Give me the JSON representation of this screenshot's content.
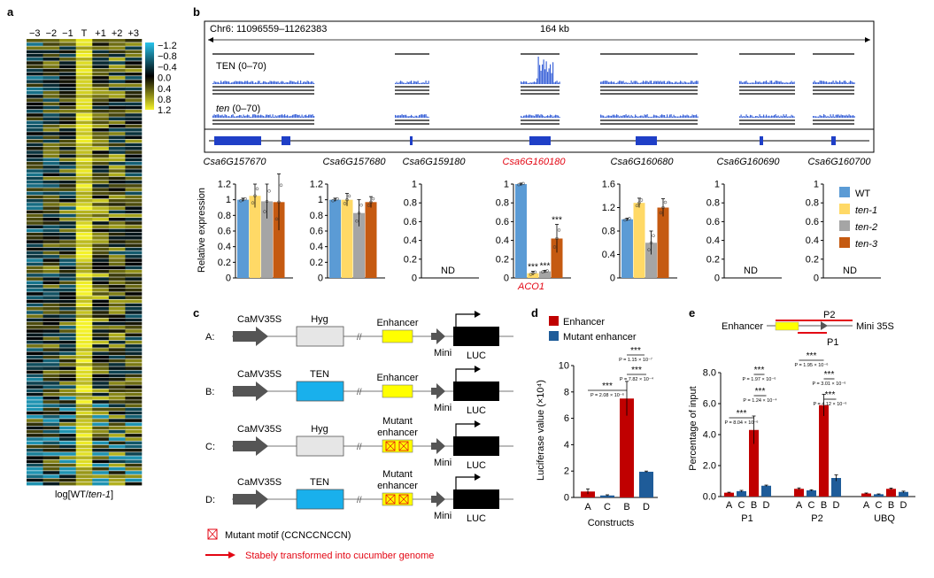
{
  "panel_labels": {
    "a": "a",
    "b": "b",
    "c": "c",
    "d": "d",
    "e": "e"
  },
  "panel_a": {
    "columns": [
      "−3",
      "−2",
      "−1",
      "T",
      "+1",
      "+2",
      "+3"
    ],
    "colorbar_ticks": [
      "−1.2",
      "−0.8",
      "−0.4",
      "0.0",
      "0.4",
      "0.8",
      "1.2"
    ],
    "xlabel_pre": "log[WT/",
    "xlabel_it": "ten-1",
    "xlabel_post": "]",
    "colors": {
      "neg": "#29c4ec",
      "zero": "#000000",
      "pos": "#f4f22a"
    }
  },
  "panel_b": {
    "region": "Chr6: 11096559–11262383",
    "scale": "164 kb",
    "track_top_prefix": "TEN",
    "track_top_range": " (0–70)",
    "track_bottom_prefix": "ten",
    "track_bottom_range": " (0–70)",
    "genes": [
      "Csa6G157670",
      "Csa6G157680",
      "Csa6G159180",
      "Csa6G160180",
      "Csa6G160680",
      "Csa6G160690",
      "Csa6G160700"
    ],
    "highlight_gene": "Csa6G160180",
    "highlight_alias": "ACO1",
    "nd_label": "ND",
    "ylabel": "Relative expression",
    "legend": [
      {
        "name": "WT",
        "color": "#5b9bd5",
        "italic": false
      },
      {
        "name": "ten-1",
        "color": "#ffd966",
        "italic": true
      },
      {
        "name": "ten-2",
        "color": "#a5a5a5",
        "italic": true
      },
      {
        "name": "ten-3",
        "color": "#c55a11",
        "italic": true
      }
    ],
    "sig_label": "***"
  },
  "panel_c": {
    "rows": [
      {
        "letter": "A:",
        "promoter": "CaMV35S",
        "box1": "Hyg",
        "box1_color": "#e6e6e6",
        "box2": "Enhancer",
        "mutant": false
      },
      {
        "letter": "B:",
        "promoter": "CaMV35S",
        "box1": "TEN",
        "box1_color": "#19b0ec",
        "box2": "Enhancer",
        "mutant": false
      },
      {
        "letter": "C:",
        "promoter": "CaMV35S",
        "box1": "Hyg",
        "box1_color": "#e6e6e6",
        "box2": "Mutant enhancer",
        "mutant": true
      },
      {
        "letter": "D:",
        "promoter": "CaMV35S",
        "box1": "TEN",
        "box1_color": "#19b0ec",
        "box2": "Mutant enhancer",
        "mutant": true
      }
    ],
    "mini": "Mini",
    "luc": "LUC",
    "mutant_label_1": "Mutant",
    "mutant_label_2": "enhancer",
    "legend_motif": "Mutant motif (CCNCCNCCN)",
    "legend_arrow": "Stabely transformed into cucumber genome"
  },
  "panel_d": {
    "legend_enh": "Enhancer",
    "legend_mut": "Mutant enhancer",
    "ylabel": "Luciferase value (×10⁴)",
    "xlabel": "Constructs",
    "sig": [
      "***",
      "***",
      "***"
    ],
    "pvals": [
      "P = 2.08 × 10⁻⁶",
      "P = 1.15 × 10⁻⁷",
      "P = 7.82 × 10⁻⁴"
    ]
  },
  "panel_e": {
    "schematic_enhancer": "Enhancer",
    "schematic_p2": "P2",
    "schematic_p1": "P1",
    "schematic_mini": "Mini 35S",
    "ylabel": "Percentage of input",
    "groups": [
      "P1",
      "P2",
      "UBQ"
    ],
    "sig": [
      "***",
      "***",
      "***",
      "***",
      "***",
      "***"
    ],
    "pvals": [
      "P = 8.04 × 10⁻⁶",
      "P = 1.97 × 10⁻⁶",
      "P = 1.24 × 10⁻⁴",
      "P = 1.95 × 10⁻⁶",
      "P = 3.01 × 10⁻⁶",
      "P = 4.12 × 10⁻⁶"
    ]
  },
  "chart_data": [
    {
      "type": "heatmap",
      "id": "a",
      "columns": [
        "−3",
        "−2",
        "−1",
        "T",
        "+1",
        "+2",
        "+3"
      ],
      "vmin": -1.2,
      "vmax": 1.2,
      "xlabel": "log[WT/ten-1]"
    },
    {
      "type": "bar",
      "id": "b-Csa6G157670",
      "series": [
        {
          "name": "WT",
          "values": [
            1.0
          ]
        },
        {
          "name": "ten-1",
          "values": [
            1.05
          ]
        },
        {
          "name": "ten-2",
          "values": [
            0.98
          ]
        },
        {
          "name": "ten-3",
          "values": [
            0.97
          ]
        }
      ],
      "errors": [
        0.02,
        0.15,
        0.22,
        0.36
      ],
      "ylim": [
        0,
        1.2
      ],
      "yticks": [
        0,
        0.2,
        0.4,
        0.6,
        0.8,
        1.0,
        1.2
      ],
      "ylabel": "Relative expression"
    },
    {
      "type": "bar",
      "id": "b-Csa6G157680",
      "series": [
        {
          "name": "WT",
          "values": [
            1.0
          ]
        },
        {
          "name": "ten-1",
          "values": [
            1.0
          ]
        },
        {
          "name": "ten-2",
          "values": [
            0.83
          ]
        },
        {
          "name": "ten-3",
          "values": [
            0.97
          ]
        }
      ],
      "errors": [
        0.02,
        0.08,
        0.17,
        0.07
      ],
      "ylim": [
        0,
        1.2
      ],
      "yticks": [
        0,
        0.2,
        0.4,
        0.6,
        0.8,
        1.0,
        1.2
      ]
    },
    {
      "type": "bar",
      "id": "b-Csa6G159180",
      "series": [],
      "ylim": [
        0,
        1.0
      ],
      "yticks": [
        0,
        0.2,
        0.4,
        0.6,
        0.8,
        1.0
      ],
      "annotation": "ND"
    },
    {
      "type": "bar",
      "id": "b-Csa6G160180",
      "series": [
        {
          "name": "WT",
          "values": [
            1.0
          ]
        },
        {
          "name": "ten-1",
          "values": [
            0.05
          ]
        },
        {
          "name": "ten-2",
          "values": [
            0.07
          ]
        },
        {
          "name": "ten-3",
          "values": [
            0.42
          ]
        }
      ],
      "errors": [
        0.01,
        0.02,
        0.01,
        0.15
      ],
      "ylim": [
        0,
        1.0
      ],
      "yticks": [
        0,
        0.2,
        0.4,
        0.6,
        0.8,
        1.0
      ],
      "significance": [
        null,
        "***",
        "***",
        "***"
      ]
    },
    {
      "type": "bar",
      "id": "b-Csa6G160680",
      "series": [
        {
          "name": "WT",
          "values": [
            1.0
          ]
        },
        {
          "name": "ten-1",
          "values": [
            1.28
          ]
        },
        {
          "name": "ten-2",
          "values": [
            0.6
          ]
        },
        {
          "name": "ten-3",
          "values": [
            1.2
          ]
        }
      ],
      "errors": [
        0.02,
        0.08,
        0.2,
        0.15
      ],
      "ylim": [
        0,
        1.6
      ],
      "yticks": [
        0,
        0.4,
        0.8,
        1.2,
        1.6
      ]
    },
    {
      "type": "bar",
      "id": "b-Csa6G160690",
      "series": [],
      "ylim": [
        0,
        1.0
      ],
      "yticks": [
        0,
        0.2,
        0.4,
        0.6,
        0.8,
        1.0
      ],
      "annotation": "ND"
    },
    {
      "type": "bar",
      "id": "b-Csa6G160700",
      "series": [],
      "ylim": [
        0,
        1.0
      ],
      "yticks": [
        0,
        0.2,
        0.4,
        0.6,
        0.8,
        1.0
      ],
      "annotation": "ND"
    },
    {
      "type": "bar",
      "id": "d",
      "categories": [
        "A",
        "C",
        "B",
        "D"
      ],
      "values": [
        0.45,
        0.15,
        7.5,
        1.95
      ],
      "errors": [
        0.2,
        0.05,
        1.3,
        0.05
      ],
      "category_series": [
        "Enhancer",
        "Mutant enhancer",
        "Enhancer",
        "Mutant enhancer"
      ],
      "ylim": [
        0,
        10
      ],
      "yticks": [
        0,
        2,
        4,
        6,
        8,
        10
      ],
      "ylabel": "Luciferase value (×10⁴)",
      "xlabel": "Constructs"
    },
    {
      "type": "bar",
      "id": "e",
      "groups": [
        "P1",
        "P2",
        "UBQ"
      ],
      "categories": [
        "A",
        "C",
        "B",
        "D"
      ],
      "values": [
        [
          0.25,
          0.35,
          4.3,
          0.7
        ],
        [
          0.5,
          0.4,
          5.9,
          1.2
        ],
        [
          0.2,
          0.15,
          0.5,
          0.3
        ]
      ],
      "errors": [
        [
          0.03,
          0.05,
          0.9,
          0.04
        ],
        [
          0.06,
          0.04,
          0.7,
          0.2
        ],
        [
          0.03,
          0.02,
          0.05,
          0.05
        ]
      ],
      "category_series": [
        "Enhancer",
        "Mutant enhancer",
        "Enhancer",
        "Mutant enhancer"
      ],
      "ylim": [
        0,
        8.0
      ],
      "yticks": [
        0,
        2.0,
        4.0,
        6.0,
        8.0
      ],
      "ylabel": "Percentage of input"
    }
  ]
}
